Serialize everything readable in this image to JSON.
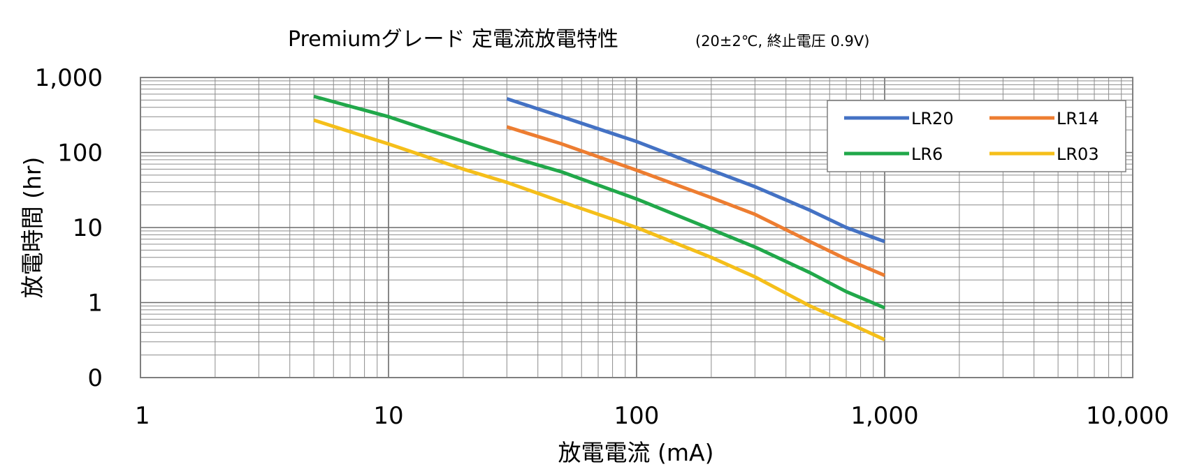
{
  "chart_data": {
    "type": "line",
    "title": "Premiumグレード 定電流放電特性",
    "subtitle": "(20±2℃, 終止電圧 0.9V)",
    "xlabel": "放電電流 (mA)",
    "ylabel": "放電時間 (hr)",
    "x_scale": "log",
    "y_scale": "log",
    "xlim": [
      1,
      10000
    ],
    "ylim": [
      0.1,
      1000
    ],
    "x_ticks": [
      1,
      10,
      100,
      1000,
      10000
    ],
    "x_tick_labels": [
      "1",
      "10",
      "100",
      "1,000",
      "10,000"
    ],
    "y_ticks": [
      0.1,
      1,
      10,
      100,
      1000
    ],
    "y_tick_labels": [
      "0",
      "1",
      "10",
      "100",
      "1,000"
    ],
    "grid": true,
    "legend_position": "top-right",
    "series": [
      {
        "name": "LR20",
        "color": "#4472C4",
        "x": [
          30,
          50,
          100,
          200,
          300,
          500,
          700,
          1000
        ],
        "y": [
          520,
          300,
          140,
          58,
          35,
          17,
          10,
          6.5
        ]
      },
      {
        "name": "LR14",
        "color": "#ED7D31",
        "x": [
          30,
          50,
          100,
          200,
          300,
          500,
          700,
          1000
        ],
        "y": [
          220,
          130,
          58,
          25,
          15,
          6.5,
          3.8,
          2.3
        ]
      },
      {
        "name": "LR6",
        "color": "#21A84A",
        "x": [
          5,
          10,
          20,
          30,
          50,
          100,
          200,
          300,
          500,
          700,
          1000
        ],
        "y": [
          560,
          300,
          140,
          90,
          55,
          24,
          9.5,
          5.5,
          2.5,
          1.4,
          0.85
        ]
      },
      {
        "name": "LR03",
        "color": "#F5BF1A",
        "x": [
          5,
          10,
          20,
          30,
          50,
          100,
          200,
          300,
          500,
          700,
          1000
        ],
        "y": [
          270,
          130,
          60,
          40,
          22,
          10,
          4,
          2.2,
          0.9,
          0.55,
          0.32
        ]
      }
    ]
  }
}
